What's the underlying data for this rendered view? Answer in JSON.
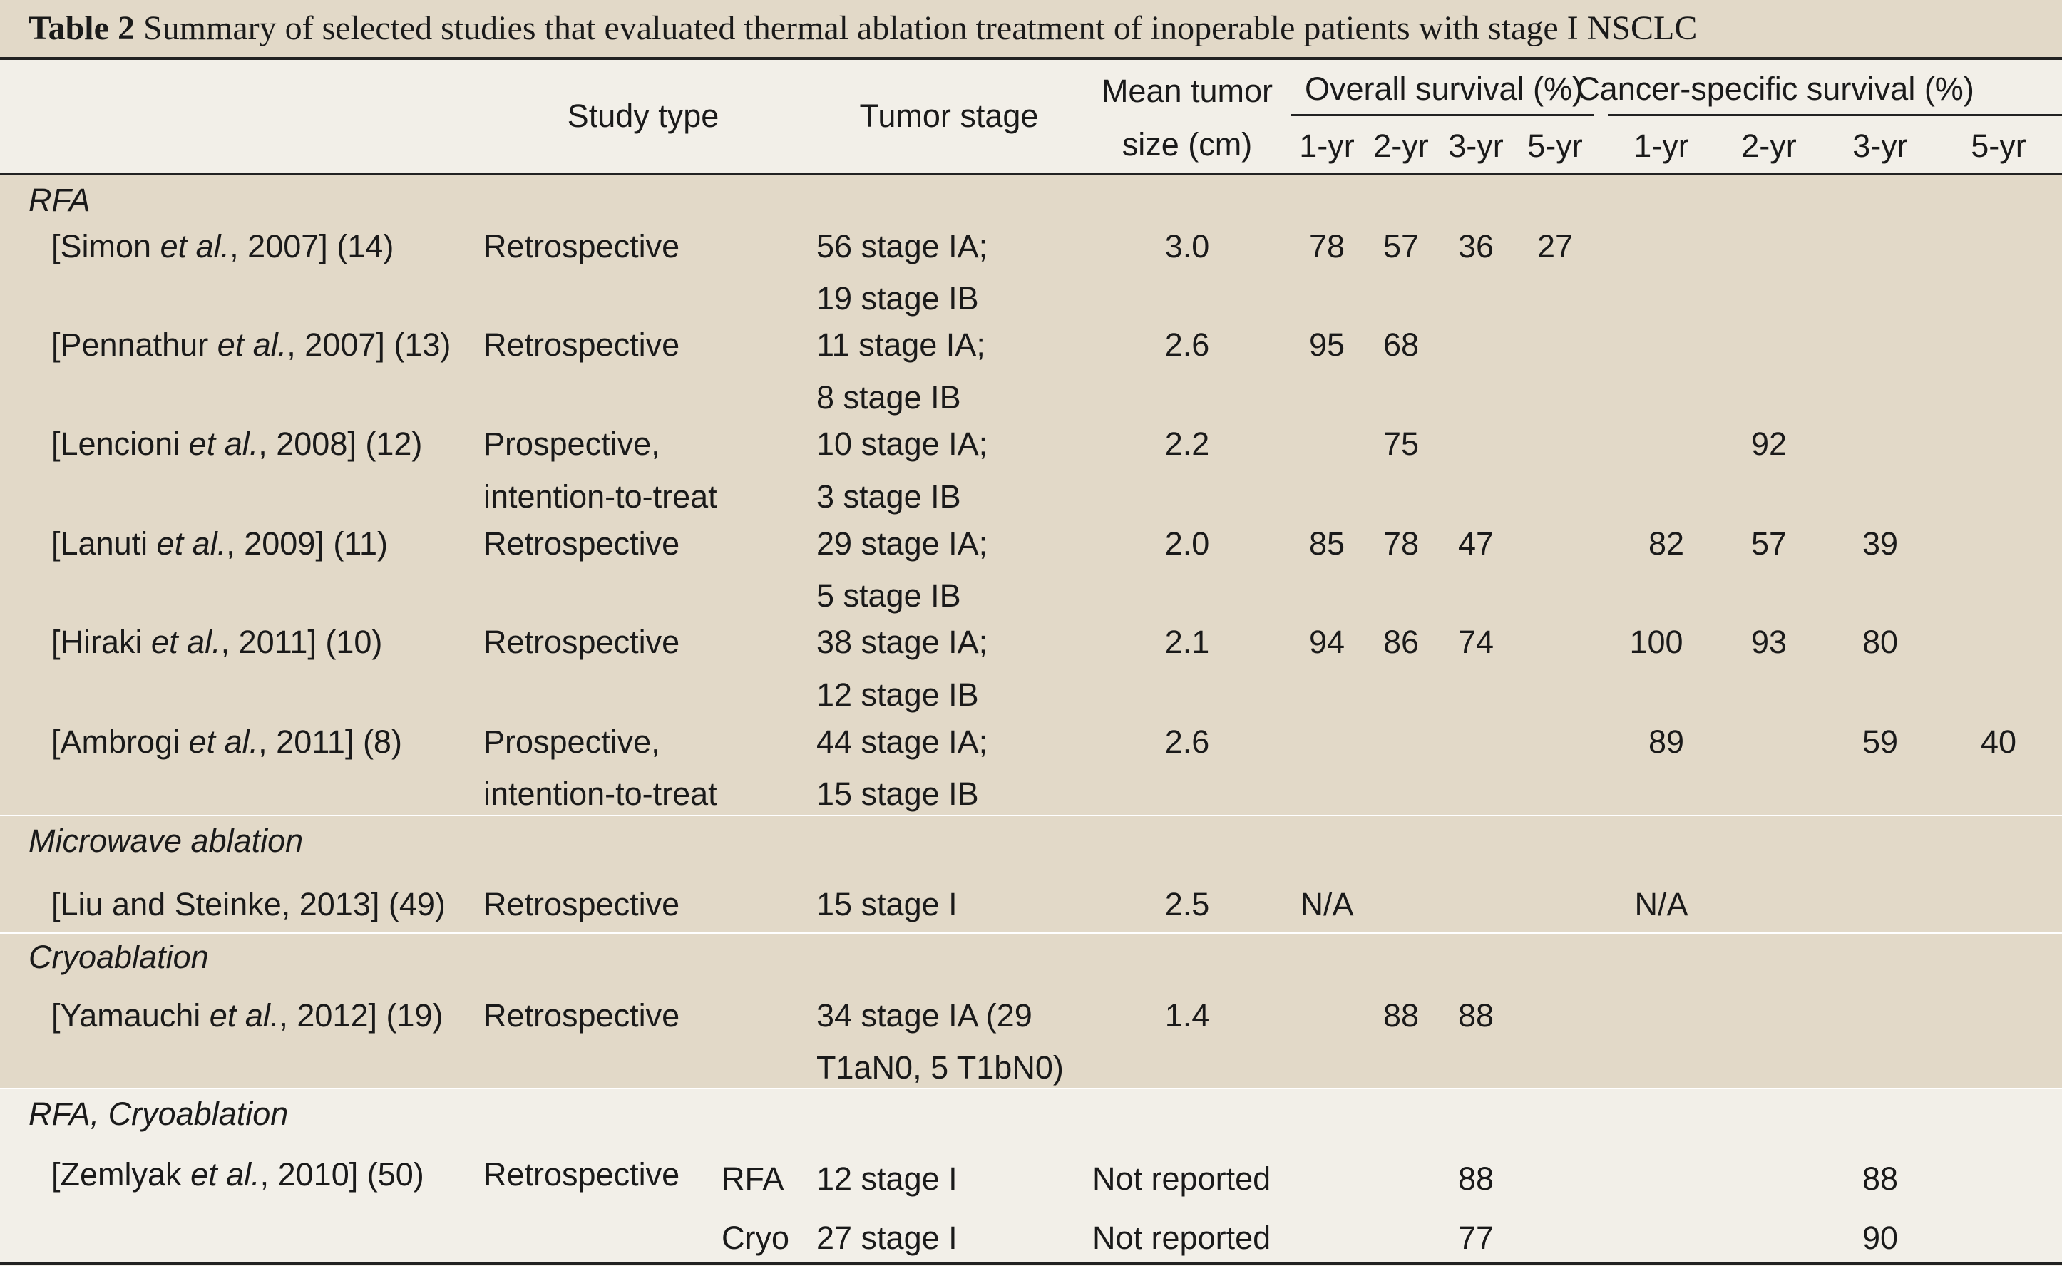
{
  "title": {
    "label": "Table 2",
    "text": "Summary of selected studies that evaluated thermal ablation treatment of inoperable patients with stage I NSCLC"
  },
  "header": {
    "study_type": "Study type",
    "tumor_stage": "Tumor stage",
    "mean_size_line1": "Mean tumor",
    "mean_size_line2": "size (cm)",
    "overall_survival": "Overall survival (%)",
    "cancer_specific": "Cancer-specific survival (%)",
    "os_years": [
      "1-yr",
      "2-yr",
      "3-yr",
      "5-yr"
    ],
    "cs_years": [
      "1-yr",
      "2-yr",
      "3-yr",
      "5-yr"
    ]
  },
  "sections": [
    {
      "name": "RFA",
      "rows": [
        {
          "author": "Simon",
          "year_ref": ", 2007] (14)",
          "study_type": [
            "Retrospective"
          ],
          "stage": [
            "56 stage IA;",
            "19 stage IB"
          ],
          "size": "3.0",
          "os": [
            "78",
            "57",
            "36",
            "27"
          ],
          "cs": [
            "",
            "",
            "",
            ""
          ]
        },
        {
          "author": "Pennathur",
          "year_ref": ", 2007] (13)",
          "study_type": [
            "Retrospective"
          ],
          "stage": [
            "11 stage IA;",
            "8 stage IB"
          ],
          "size": "2.6",
          "os": [
            "95",
            "68",
            "",
            ""
          ],
          "cs": [
            "",
            "",
            "",
            ""
          ]
        },
        {
          "author": "Lencioni",
          "year_ref": ", 2008] (12)",
          "study_type": [
            "Prospective,",
            "intention-to-treat"
          ],
          "stage": [
            "10 stage IA;",
            "3 stage IB"
          ],
          "size": "2.2",
          "os": [
            "",
            "75",
            "",
            ""
          ],
          "cs": [
            "",
            "92",
            "",
            ""
          ]
        },
        {
          "author": "Lanuti",
          "year_ref": ", 2009] (11)",
          "study_type": [
            "Retrospective"
          ],
          "stage": [
            "29 stage IA;",
            "5 stage IB"
          ],
          "size": "2.0",
          "os": [
            "85",
            "78",
            "47",
            ""
          ],
          "cs": [
            "82",
            "57",
            "39",
            ""
          ]
        },
        {
          "author": "Hiraki",
          "year_ref": ", 2011] (10)",
          "study_type": [
            "Retrospective"
          ],
          "stage": [
            "38 stage IA;",
            "12 stage IB"
          ],
          "size": "2.1",
          "os": [
            "94",
            "86",
            "74",
            ""
          ],
          "cs": [
            "100",
            "93",
            "80",
            ""
          ]
        },
        {
          "author": "Ambrogi",
          "year_ref": ", 2011] (8)",
          "study_type": [
            "Prospective,",
            "intention-to-treat"
          ],
          "stage": [
            "44 stage IA;",
            "15 stage IB"
          ],
          "size": "2.6",
          "os": [
            "",
            "",
            "",
            ""
          ],
          "cs": [
            "89",
            "",
            "59",
            "40"
          ]
        }
      ]
    },
    {
      "name": "Microwave ablation",
      "rows": [
        {
          "plain": "[Liu and Steinke, 2013] (49)",
          "study_type": [
            "Retrospective"
          ],
          "stage": [
            "15 stage I"
          ],
          "size": "2.5",
          "os": [
            "N/A",
            "",
            "",
            ""
          ],
          "cs": [
            "N/A",
            "",
            "",
            ""
          ]
        }
      ]
    },
    {
      "name": "Cryoablation",
      "rows": [
        {
          "author": "Yamauchi",
          "year_ref": ", 2012] (19)",
          "study_type": [
            "Retrospective"
          ],
          "stage": [
            "34 stage IA (29",
            "T1aN0, 5 T1bN0)"
          ],
          "size": "1.4",
          "os": [
            "",
            "88",
            "88",
            ""
          ],
          "cs": [
            "",
            "",
            "",
            ""
          ]
        }
      ]
    },
    {
      "name": "RFA, Cryoablation",
      "rows": [
        {
          "author": "Zemlyak",
          "year_ref": ", 2010] (50)",
          "study_type": [
            "Retrospective"
          ],
          "subrows": [
            {
              "modality": "RFA",
              "stage": "12 stage I",
              "size": "Not reported",
              "os3": "88",
              "cs3": "88"
            },
            {
              "modality": "Cryo",
              "stage": "27 stage I",
              "size": "Not reported",
              "os3": "77",
              "cs3": "90"
            }
          ]
        }
      ]
    }
  ],
  "et_al": "et al.",
  "colors": {
    "band": "#e2d9c8",
    "light": "#f2efe8",
    "rule": "#222222"
  }
}
